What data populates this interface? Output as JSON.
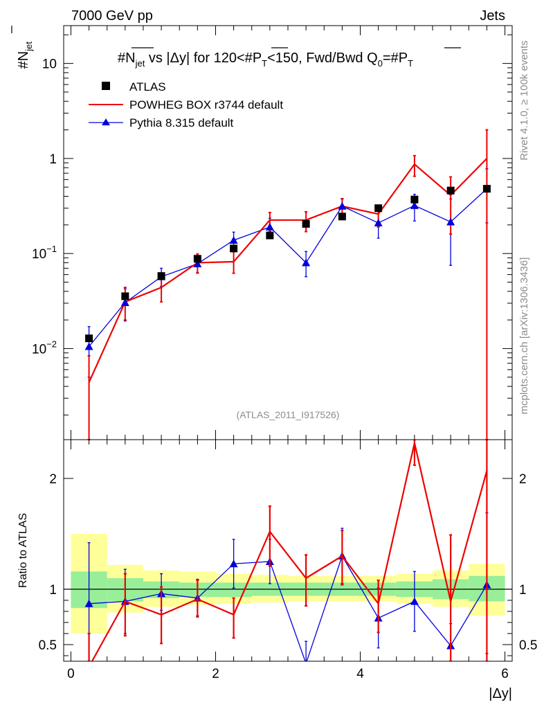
{
  "header": {
    "left": "7000 GeV pp",
    "right": "Jets"
  },
  "side_labels": {
    "rivet": "Rivet 4.1.0, ≥ 100k events",
    "mcplots": "mcplots.cern.ch [arXiv:1306.3436]"
  },
  "chart_data": [
    {
      "type": "scatter",
      "panel": "main",
      "title": "#N_jet vs |Δy| for 120<#P_T<150, Fwd/Bwd Q₀=#P_T",
      "title_parts": {
        "n_sym": "#N",
        "jet_sub": "jet",
        "mid": " vs |Δy| for 120<#",
        "p_sym": "P",
        "t_sub": "T",
        "mid2": "<150, Fwd/Bwd Q",
        "q_sub": "0",
        "eq": "=#",
        "p2_sym": "P",
        "t2_sub": "T"
      },
      "ylabel": {
        "main": "#N",
        "sub": "jet"
      },
      "yscale": "log",
      "ylim": [
        0.0011,
        25
      ],
      "xlim": [
        -0.1,
        6.1
      ],
      "y_ticks": [
        {
          "value": 0.01,
          "label": "10",
          "exp": "−2"
        },
        {
          "value": 0.1,
          "label": "10",
          "exp": "−1"
        },
        {
          "value": 1,
          "label": "1",
          "exp": ""
        },
        {
          "value": 10,
          "label": "10",
          "exp": ""
        }
      ],
      "watermark": "(ATLAS_2011_I917526)",
      "legend": [
        {
          "name": "ATLAS",
          "marker": "square",
          "color": "#000000"
        },
        {
          "name": "POWHEG BOX r3744 default",
          "marker": "line",
          "color": "#ee0000"
        },
        {
          "name": "Pythia 8.315 default",
          "marker": "triangle",
          "color": "#0000dd"
        }
      ],
      "series": [
        {
          "name": "ATLAS",
          "color": "#000000",
          "x": [
            0.25,
            0.75,
            1.25,
            1.75,
            2.25,
            2.75,
            3.25,
            3.75,
            4.25,
            4.75,
            5.25,
            5.75
          ],
          "y": [
            0.0128,
            0.0355,
            0.058,
            0.088,
            0.113,
            0.155,
            0.205,
            0.245,
            0.3,
            0.37,
            0.46,
            0.48
          ]
        },
        {
          "name": "POWHEG BOX r3744 default",
          "color": "#ee0000",
          "x": [
            0.25,
            0.75,
            1.25,
            1.75,
            2.25,
            2.75,
            3.25,
            3.75,
            4.25,
            4.75,
            5.25,
            5.75
          ],
          "y": [
            0.0044,
            0.031,
            0.044,
            0.08,
            0.082,
            0.225,
            0.225,
            0.315,
            0.26,
            0.87,
            0.41,
            1.0
          ],
          "err_lo": [
            0.004,
            0.011,
            0.013,
            0.017,
            0.02,
            0.055,
            0.055,
            0.075,
            0.07,
            0.22,
            0.25,
            0.999
          ],
          "err_hi": [
            0.004,
            0.013,
            0.015,
            0.019,
            0.023,
            0.045,
            0.05,
            0.06,
            0.06,
            0.2,
            0.23,
            1.0
          ]
        },
        {
          "name": "Pythia 8.315 default",
          "color": "#0000dd",
          "x": [
            0.25,
            0.75,
            1.25,
            1.75,
            2.25,
            2.75,
            3.25,
            3.75,
            4.25,
            4.75,
            5.25,
            5.75
          ],
          "y": [
            0.0105,
            0.0305,
            0.057,
            0.078,
            0.138,
            0.19,
            0.08,
            0.315,
            0.21,
            0.32,
            0.215,
            0.48
          ],
          "err_lo": [
            0.0055,
            0.011,
            0.012,
            0.016,
            0.027,
            0.04,
            0.023,
            0.065,
            0.065,
            0.1,
            0.14,
            0.27
          ],
          "err_hi": [
            0.0065,
            0.012,
            0.013,
            0.017,
            0.03,
            0.045,
            0.025,
            0.065,
            0.07,
            0.1,
            0.16,
            0.3
          ]
        }
      ]
    },
    {
      "type": "line",
      "panel": "ratio",
      "ylabel": "Ratio to ATLAS",
      "xlabel": "|Δy|",
      "ylim": [
        0.35,
        2.35
      ],
      "xlim": [
        -0.1,
        6.1
      ],
      "y_ticks": [
        0.5,
        1,
        2
      ],
      "y_tick_labels": [
        "0.5",
        "1",
        "2"
      ],
      "x_ticks": [
        0,
        2,
        4,
        6
      ],
      "x_tick_labels": [
        "0",
        "2",
        "4",
        "6"
      ],
      "reference": 1,
      "bin_edges": [
        0,
        0.5,
        1,
        1.5,
        2,
        2.5,
        3,
        3.5,
        4,
        4.5,
        5,
        5.5,
        6
      ],
      "band_outer": {
        "color": "#ffff99",
        "lo": [
          0.6,
          0.79,
          0.84,
          0.86,
          0.87,
          0.88,
          0.89,
          0.89,
          0.89,
          0.87,
          0.84,
          0.76
        ],
        "hi": [
          1.5,
          1.22,
          1.17,
          1.16,
          1.14,
          1.13,
          1.12,
          1.12,
          1.12,
          1.14,
          1.17,
          1.23
        ]
      },
      "band_inner": {
        "color": "#99ee99",
        "lo": [
          0.83,
          0.89,
          0.92,
          0.93,
          0.93,
          0.94,
          0.94,
          0.94,
          0.94,
          0.93,
          0.91,
          0.89
        ],
        "hi": [
          1.16,
          1.1,
          1.07,
          1.06,
          1.06,
          1.06,
          1.06,
          1.06,
          1.06,
          1.07,
          1.09,
          1.12
        ]
      },
      "series": [
        {
          "name": "POWHEG BOX r3744 default",
          "color": "#ee0000",
          "x": [
            0.25,
            0.75,
            1.25,
            1.75,
            2.25,
            2.75,
            3.25,
            3.75,
            4.25,
            4.75,
            5.25,
            5.75
          ],
          "y": [
            0.3,
            0.89,
            0.77,
            0.91,
            0.77,
            1.52,
            1.1,
            1.3,
            0.87,
            2.32,
            0.89,
            2.07
          ],
          "err_lo": [
            0.3,
            0.31,
            0.26,
            0.16,
            0.21,
            0.31,
            0.25,
            0.26,
            0.26,
            0.2,
            0.9,
            2.0
          ],
          "err_hi": [
            0.3,
            0.25,
            0.25,
            0.17,
            0.15,
            0.23,
            0.21,
            0.23,
            0.21,
            0.2,
            0.6,
            2.0
          ]
        },
        {
          "name": "Pythia 8.315 default",
          "color": "#0000dd",
          "x": [
            0.25,
            0.75,
            1.25,
            1.75,
            2.25,
            2.75,
            3.25,
            3.75,
            4.25,
            4.75,
            5.25,
            5.75
          ],
          "y": [
            0.87,
            0.89,
            0.96,
            0.92,
            1.23,
            1.25,
            0.33,
            1.3,
            0.74,
            0.89,
            0.49,
            1.04
          ],
          "err_lo": [
            0.55,
            0.29,
            0.15,
            0.16,
            0.22,
            0.2,
            0.2,
            0.25,
            0.27,
            0.27,
            0.2,
            0.62
          ],
          "err_hi": [
            0.55,
            0.29,
            0.18,
            0.17,
            0.22,
            0.2,
            0.2,
            0.25,
            0.27,
            0.27,
            0.2,
            0.65
          ]
        }
      ]
    }
  ]
}
